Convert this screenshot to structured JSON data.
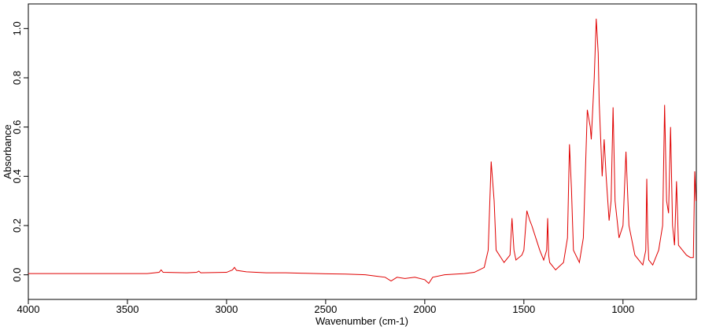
{
  "chart_data": {
    "type": "line",
    "xlabel": "Wavenumber (cm-1)",
    "ylabel": "Absorbance",
    "x": [
      4000,
      3600,
      3400,
      3340,
      3330,
      3320,
      3200,
      3150,
      3140,
      3130,
      3000,
      2970,
      2960,
      2950,
      2900,
      2800,
      2700,
      2600,
      2500,
      2400,
      2300,
      2250,
      2200,
      2170,
      2140,
      2100,
      2050,
      2000,
      1980,
      1960,
      1900,
      1800,
      1750,
      1700,
      1680,
      1665,
      1650,
      1640,
      1600,
      1570,
      1560,
      1550,
      1540,
      1510,
      1500,
      1485,
      1470,
      1460,
      1440,
      1420,
      1400,
      1385,
      1380,
      1375,
      1370,
      1340,
      1300,
      1280,
      1270,
      1260,
      1250,
      1220,
      1200,
      1180,
      1165,
      1160,
      1145,
      1135,
      1125,
      1120,
      1105,
      1095,
      1085,
      1070,
      1060,
      1050,
      1040,
      1020,
      1000,
      985,
      970,
      940,
      900,
      885,
      880,
      875,
      870,
      850,
      820,
      800,
      790,
      780,
      770,
      760,
      750,
      740,
      730,
      720,
      700,
      680,
      660,
      645,
      638,
      632
    ],
    "values": [
      0.005,
      0.005,
      0.005,
      0.01,
      0.02,
      0.01,
      0.008,
      0.01,
      0.015,
      0.008,
      0.01,
      0.02,
      0.03,
      0.018,
      0.012,
      0.008,
      0.008,
      0.006,
      0.004,
      0.003,
      0.0,
      -0.005,
      -0.01,
      -0.025,
      -0.01,
      -0.015,
      -0.01,
      -0.02,
      -0.035,
      -0.01,
      0.0,
      0.005,
      0.01,
      0.03,
      0.1,
      0.46,
      0.3,
      0.1,
      0.05,
      0.08,
      0.23,
      0.1,
      0.06,
      0.08,
      0.1,
      0.26,
      0.22,
      0.2,
      0.15,
      0.1,
      0.06,
      0.1,
      0.23,
      0.08,
      0.05,
      0.02,
      0.05,
      0.15,
      0.53,
      0.35,
      0.1,
      0.05,
      0.15,
      0.67,
      0.6,
      0.55,
      0.8,
      1.04,
      0.9,
      0.7,
      0.4,
      0.55,
      0.4,
      0.22,
      0.3,
      0.68,
      0.3,
      0.15,
      0.2,
      0.5,
      0.2,
      0.08,
      0.04,
      0.1,
      0.39,
      0.15,
      0.06,
      0.04,
      0.1,
      0.2,
      0.69,
      0.3,
      0.25,
      0.6,
      0.2,
      0.12,
      0.38,
      0.12,
      0.1,
      0.08,
      0.07,
      0.07,
      0.42,
      0.3
    ],
    "color": "#e00000",
    "xlim": [
      4000,
      630
    ],
    "ylim": [
      -0.1,
      1.1
    ],
    "xticks": [
      4000,
      3500,
      3000,
      2500,
      2000,
      1500,
      1000
    ],
    "yticks": [
      {
        "value": 0,
        "label": "0.0"
      },
      {
        "value": 0.2,
        "label": "0.2"
      },
      {
        "value": 0.4,
        "label": "0.4"
      },
      {
        "value": 0.6,
        "label": "0.6"
      },
      {
        "value": 0.8,
        "label": "0.8"
      },
      {
        "value": 1,
        "label": "1.0"
      }
    ]
  }
}
